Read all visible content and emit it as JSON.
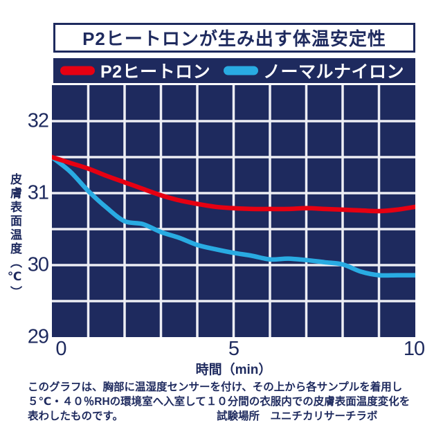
{
  "title": "P2ヒートロンが生み出す体温安定性",
  "legend": {
    "series1": {
      "label": "P2ヒートロン",
      "color": "#e60012"
    },
    "series2": {
      "label": "ノーマルナイロン",
      "color": "#29abe2"
    }
  },
  "axis": {
    "xlabel": "時間（min）",
    "ylabel": "皮膚表面温度（℃）"
  },
  "chart_data": {
    "type": "line",
    "title": "P2ヒートロンが生み出す体温安定性",
    "xlabel": "時間（min）",
    "ylabel": "皮膚表面温度（℃）",
    "xlim": [
      0,
      10
    ],
    "ylim": [
      29,
      32.5
    ],
    "x_ticks": [
      0,
      5,
      10
    ],
    "y_ticks": [
      32,
      31,
      30,
      29
    ],
    "grid": {
      "on": true,
      "x_step": 1,
      "y_step": 0.5
    },
    "plot_bg": "#1e2a5e",
    "grid_color": "#edeef4",
    "legend_position": "top",
    "x": [
      0,
      0.5,
      1,
      1.5,
      2,
      2.5,
      3,
      3.5,
      4,
      4.5,
      5,
      5.5,
      6,
      6.5,
      7,
      7.5,
      8,
      8.5,
      9,
      9.5,
      10
    ],
    "series": [
      {
        "id": "p2-heatron",
        "name": "P2ヒートロン",
        "color": "#e60012",
        "values": [
          31.5,
          31.42,
          31.34,
          31.24,
          31.15,
          31.06,
          30.97,
          30.9,
          30.85,
          30.81,
          30.79,
          30.78,
          30.78,
          30.78,
          30.79,
          30.78,
          30.77,
          30.76,
          30.75,
          30.77,
          30.81
        ]
      },
      {
        "id": "normal-nylon",
        "name": "ノーマルナイロン",
        "color": "#29abe2",
        "values": [
          31.5,
          31.3,
          31.03,
          30.8,
          30.61,
          30.57,
          30.46,
          30.38,
          30.28,
          30.22,
          30.17,
          30.13,
          30.08,
          30.09,
          30.07,
          30.04,
          30.01,
          29.91,
          29.86,
          29.86,
          29.86
        ]
      }
    ]
  },
  "footer": {
    "line1": "このグラフは、胸部に温湿度センサーを付け、その上から各サンプルを着用し",
    "line2": "５℃・４０％RHの環境室へ入室して１０分間の衣服内での皮膚表面温度変化を",
    "line3": "表わしたものです。",
    "credit": "試験場所　ユニチカリサーチラボ"
  }
}
